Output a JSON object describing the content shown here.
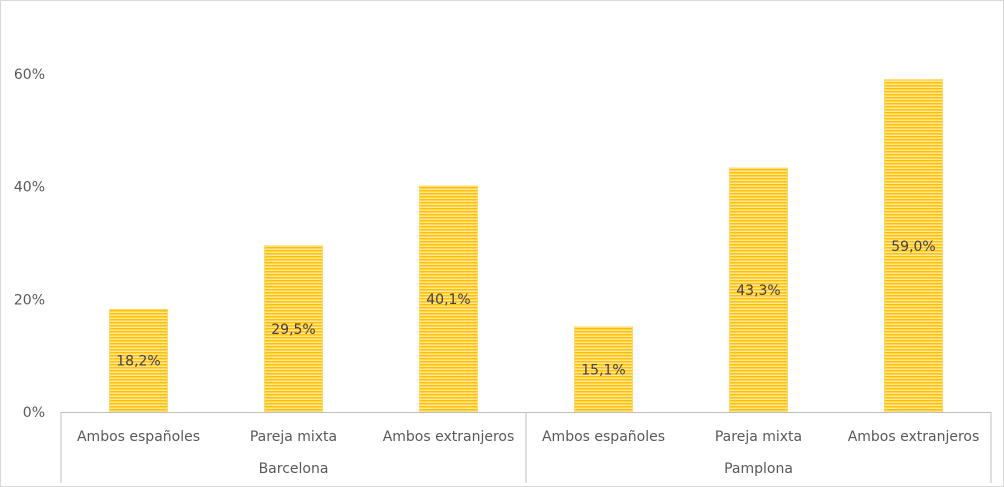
{
  "chart_data": {
    "type": "bar",
    "title": "",
    "groups": [
      "Barcelona",
      "Pamplona"
    ],
    "categories": [
      "Ambos españoles",
      "Pareja mixta",
      "Ambos extranjeros",
      "Ambos españoles",
      "Pareja mixta",
      "Ambos extranjeros"
    ],
    "group_of_category": [
      0,
      0,
      0,
      1,
      1,
      1
    ],
    "values": [
      18.2,
      29.5,
      40.1,
      15.1,
      43.3,
      59.0
    ],
    "data_labels": [
      "18,2%",
      "29,5%",
      "40,1%",
      "15,1%",
      "43,3%",
      "59,0%"
    ],
    "yticks": [
      0,
      20,
      40,
      60
    ],
    "ytick_labels": [
      "0%",
      "20%",
      "40%",
      "60%"
    ],
    "ylim": [
      0,
      60
    ],
    "grid": false,
    "colors": {
      "bar": "#FFC000",
      "bar_light": "#FFE699",
      "axis": "#bfbfbf"
    }
  }
}
